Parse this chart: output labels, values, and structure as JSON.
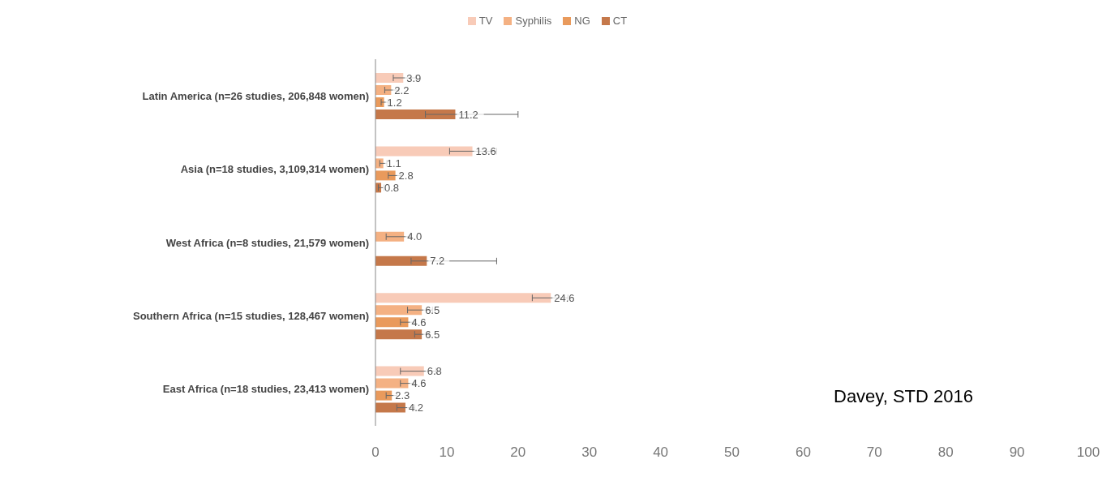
{
  "chart_data": {
    "type": "bar",
    "orientation": "horizontal",
    "categories": [
      "Latin America (n=26 studies, 206,848 women)",
      "Asia (n=18 studies, 3,109,314  women)",
      "West Africa (n=8 studies, 21,579 women)",
      "Southern Africa (n=15 studies, 128,467 women)",
      "East Africa (n=18 studies, 23,413 women)"
    ],
    "series": [
      {
        "name": "TV",
        "color": "#f8cbb8",
        "values": [
          3.9,
          13.6,
          null,
          24.6,
          6.8
        ],
        "value_labels": [
          "3.9",
          "13.6",
          null,
          "24.6",
          "6.8"
        ],
        "errors": [
          [
            2.5,
            5.7
          ],
          [
            10.4,
            17
          ],
          null,
          [
            22,
            27
          ],
          [
            3.5,
            8.5
          ]
        ]
      },
      {
        "name": "Syphilis",
        "color": "#f4b183",
        "values": [
          2.2,
          1.1,
          4.0,
          6.5,
          4.6
        ],
        "value_labels": [
          "2.2",
          "1.1",
          "4.0",
          "6.5",
          "4.6"
        ],
        "errors": [
          [
            1.3,
            3.3
          ],
          [
            0.6,
            1.6
          ],
          [
            1.5,
            5
          ],
          [
            4.5,
            8
          ],
          [
            3.5,
            5.5
          ]
        ]
      },
      {
        "name": "NG",
        "color": "#e99a5c",
        "values": [
          1.2,
          2.8,
          null,
          4.6,
          2.3
        ],
        "value_labels": [
          "1.2",
          "2.8",
          null,
          "4.6",
          "2.3"
        ],
        "errors": [
          [
            0.8,
            1.8
          ],
          [
            1.8,
            3.6
          ],
          null,
          [
            3.5,
            5.5
          ],
          [
            1.5,
            3
          ]
        ]
      },
      {
        "name": "CT",
        "color": "#c5784a",
        "values": [
          11.2,
          0.8,
          7.2,
          6.5,
          4.2
        ],
        "value_labels": [
          "11.2",
          "0.8",
          "7.2",
          "6.5",
          "4.2"
        ],
        "errors": [
          [
            7,
            20
          ],
          [
            0.4,
            1.2
          ],
          [
            5,
            17
          ],
          [
            5.5,
            7.5
          ],
          [
            3,
            5.5
          ]
        ]
      }
    ],
    "xlim": [
      0,
      100
    ],
    "xticks": [
      0,
      10,
      20,
      30,
      40,
      50,
      60,
      70,
      80,
      90,
      100
    ],
    "grid": false,
    "legend": "top",
    "annotations": [
      "Davey, STD 2016"
    ]
  }
}
